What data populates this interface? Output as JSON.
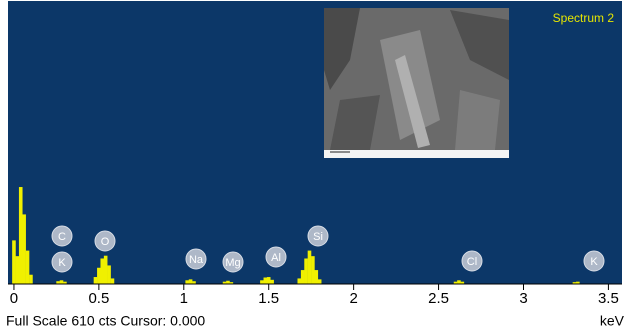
{
  "chart_data": {
    "type": "spectrum",
    "title": "Spectrum 2",
    "x": [
      0.0,
      0.02,
      0.04,
      0.06,
      0.08,
      0.1,
      0.26,
      0.28,
      0.3,
      0.48,
      0.5,
      0.52,
      0.54,
      0.56,
      0.58,
      1.02,
      1.04,
      1.06,
      1.24,
      1.26,
      1.28,
      1.46,
      1.48,
      1.5,
      1.52,
      1.68,
      1.7,
      1.72,
      1.74,
      1.76,
      1.78,
      1.8,
      2.6,
      2.62,
      2.64,
      3.3,
      3.32
    ],
    "values": [
      94,
      60,
      209,
      150,
      72,
      20,
      6,
      8,
      5,
      15,
      35,
      55,
      61,
      40,
      12,
      8,
      10,
      6,
      5,
      7,
      4,
      8,
      14,
      15,
      9,
      12,
      30,
      55,
      72,
      60,
      30,
      10,
      5,
      8,
      5,
      4,
      5
    ],
    "color": "#f0f000",
    "xlim": [
      -0.035,
      3.58
    ],
    "ylim": [
      0,
      610
    ],
    "xticks": [
      0,
      0.5,
      1,
      1.5,
      2,
      2.5,
      3,
      3.5
    ],
    "x_label": "keV",
    "footer": "Full Scale 610 cts Cursor: 0.000",
    "peak_labels": [
      "C",
      "K",
      "O",
      "Na",
      "Mg",
      "Al",
      "Si",
      "Cl",
      "K"
    ]
  }
}
